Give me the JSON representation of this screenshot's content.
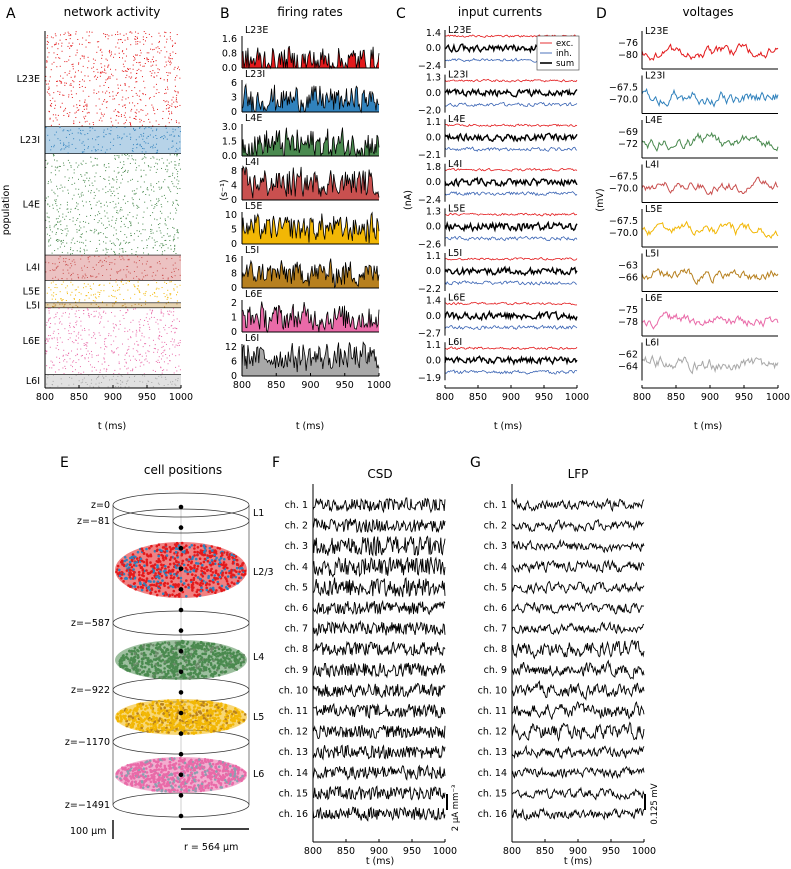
{
  "colors": {
    "L23E": "#e31a1c",
    "L23I": "#3182bd",
    "L4E": "#4a8a4f",
    "L4I": "#c9504f",
    "L5E": "#f2b705",
    "L5I": "#b7801f",
    "L6E": "#e96aa8",
    "L6I": "#a8a8a8",
    "exc": "#e31a1c",
    "inh": "#3a64b4",
    "sum": "#000000"
  },
  "panels": {
    "A": {
      "label": "A",
      "title": "network activity",
      "ylabel": "population",
      "xlabel": "t (ms)"
    },
    "B": {
      "label": "B",
      "title": "firing rates",
      "ylabel": "(s⁻¹)",
      "xlabel": "t (ms)"
    },
    "C": {
      "label": "C",
      "title": "input currents",
      "ylabel": "(nA)",
      "xlabel": "t (ms)"
    },
    "D": {
      "label": "D",
      "title": "voltages",
      "ylabel": "(mV)",
      "xlabel": "t (ms)"
    },
    "E": {
      "label": "E",
      "title": "cell positions",
      "scale_z": "100 μm",
      "scale_r": "r = 564 μm"
    },
    "F": {
      "label": "F",
      "title": "CSD",
      "xlabel": "t (ms)",
      "scale": "2 μA mm⁻³"
    },
    "G": {
      "label": "G",
      "title": "LFP",
      "xlabel": "t (ms)",
      "scale": "0.125 mV"
    }
  },
  "chart_data": [
    {
      "id": "A",
      "type": "scatter",
      "title": "network activity",
      "xlabel": "t (ms)",
      "ylabel": "population",
      "xlim": [
        800,
        1000
      ],
      "xticks": [
        "800",
        "850",
        "900",
        "950",
        "1000"
      ],
      "populations": [
        "L23E",
        "L23I",
        "L4E",
        "L4I",
        "L5E",
        "L5I",
        "L6E",
        "L6I"
      ],
      "relative_sizes": [
        20683,
        5834,
        21915,
        5479,
        4850,
        1065,
        14395,
        2948
      ]
    },
    {
      "id": "B",
      "type": "area",
      "title": "firing rates",
      "ylabel": "(s⁻¹)",
      "xlabel": "t (ms)",
      "xlim": [
        800,
        1000
      ],
      "xticks": [
        "800",
        "850",
        "900",
        "950",
        "1000"
      ],
      "rows": [
        {
          "pop": "L23E",
          "ticks": [
            "1.6",
            "0.8",
            "0.0"
          ],
          "ymax": 1.6,
          "mean": 0.35
        },
        {
          "pop": "L23I",
          "ticks": [
            "6",
            "3",
            "0"
          ],
          "ymax": 6,
          "mean": 2.3
        },
        {
          "pop": "L4E",
          "ticks": [
            "3.0",
            "1.5",
            "0.0"
          ],
          "ymax": 3.0,
          "mean": 1.1
        },
        {
          "pop": "L4I",
          "ticks": [
            "8",
            "4",
            "0"
          ],
          "ymax": 8,
          "mean": 4.2
        },
        {
          "pop": "L5E",
          "ticks": [
            "10",
            "5",
            "0"
          ],
          "ymax": 10,
          "mean": 5
        },
        {
          "pop": "L5I",
          "ticks": [
            "16",
            "8",
            "0"
          ],
          "ymax": 16,
          "mean": 7.5
        },
        {
          "pop": "L6E",
          "ticks": [
            "2",
            "1",
            "0"
          ],
          "ymax": 2,
          "mean": 0.9
        },
        {
          "pop": "L6I",
          "ticks": [
            "12",
            "6",
            "0"
          ],
          "ymax": 12,
          "mean": 7
        }
      ]
    },
    {
      "id": "C",
      "type": "line",
      "title": "input currents",
      "ylabel": "(nA)",
      "xlabel": "t (ms)",
      "xlim": [
        800,
        1000
      ],
      "xticks": [
        "800",
        "850",
        "900",
        "950",
        "1000"
      ],
      "legend": [
        "exc.",
        "inh.",
        "sum"
      ],
      "rows": [
        {
          "pop": "L23E",
          "ticks": [
            "1.4",
            "0.0",
            "−2.4"
          ]
        },
        {
          "pop": "L23I",
          "ticks": [
            "1.3",
            "0.0",
            "−2.0"
          ]
        },
        {
          "pop": "L4E",
          "ticks": [
            "1.1",
            "0.0",
            "−2.1"
          ]
        },
        {
          "pop": "L4I",
          "ticks": [
            "1.8",
            "0.0",
            "−2.4"
          ]
        },
        {
          "pop": "L5E",
          "ticks": [
            "1.3",
            "0.0",
            "−2.6"
          ]
        },
        {
          "pop": "L5I",
          "ticks": [
            "1.1",
            "0.0",
            "−2.2"
          ]
        },
        {
          "pop": "L6E",
          "ticks": [
            "1.4",
            "0.0",
            "−2.7"
          ]
        },
        {
          "pop": "L6I",
          "ticks": [
            "1.1",
            "0.0",
            "−1.9"
          ]
        }
      ]
    },
    {
      "id": "D",
      "type": "line",
      "title": "voltages",
      "ylabel": "(mV)",
      "xlabel": "t (ms)",
      "xlim": [
        800,
        1000
      ],
      "xticks": [
        "800",
        "850",
        "900",
        "950",
        "1000"
      ],
      "rows": [
        {
          "pop": "L23E",
          "ticks": [
            "−76",
            "−80"
          ]
        },
        {
          "pop": "L23I",
          "ticks": [
            "−67.5",
            "−70.0"
          ]
        },
        {
          "pop": "L4E",
          "ticks": [
            "−69",
            "−72"
          ]
        },
        {
          "pop": "L4I",
          "ticks": [
            "−67.5",
            "−70.0"
          ]
        },
        {
          "pop": "L5E",
          "ticks": [
            "−67.5",
            "−70.0"
          ]
        },
        {
          "pop": "L5I",
          "ticks": [
            "−63",
            "−66"
          ]
        },
        {
          "pop": "L6E",
          "ticks": [
            "−75",
            "−78"
          ]
        },
        {
          "pop": "L6I",
          "ticks": [
            "−62",
            "−64"
          ]
        }
      ]
    },
    {
      "id": "E",
      "type": "other",
      "title": "cell positions",
      "depth_labels": [
        "z=0",
        "z=−81",
        "z=−587",
        "z=−922",
        "z=−1170",
        "z=−1491"
      ],
      "depths_um": [
        0,
        -81,
        -587,
        -922,
        -1170,
        -1491
      ],
      "layers": [
        "L1",
        "L2/3",
        "L4",
        "L5",
        "L6"
      ],
      "scale_z": "100 μm",
      "scale_r": "r = 564 μm"
    },
    {
      "id": "F",
      "type": "line",
      "title": "CSD",
      "xlabel": "t (ms)",
      "xlim": [
        800,
        1000
      ],
      "xticks": [
        "800",
        "850",
        "900",
        "950",
        "1000"
      ],
      "channels": [
        "ch. 1",
        "ch. 2",
        "ch. 3",
        "ch. 4",
        "ch. 5",
        "ch. 6",
        "ch. 7",
        "ch. 8",
        "ch. 9",
        "ch. 10",
        "ch. 11",
        "ch. 12",
        "ch. 13",
        "ch. 14",
        "ch. 15",
        "ch. 16"
      ],
      "scale_bar": "2 μA mm⁻³"
    },
    {
      "id": "G",
      "type": "line",
      "title": "LFP",
      "xlabel": "t (ms)",
      "xlim": [
        800,
        1000
      ],
      "xticks": [
        "800",
        "850",
        "900",
        "950",
        "1000"
      ],
      "channels": [
        "ch. 1",
        "ch. 2",
        "ch. 3",
        "ch. 4",
        "ch. 5",
        "ch. 6",
        "ch. 7",
        "ch. 8",
        "ch. 9",
        "ch. 10",
        "ch. 11",
        "ch. 12",
        "ch. 13",
        "ch. 14",
        "ch. 15",
        "ch. 16"
      ],
      "scale_bar": "0.125 mV"
    }
  ]
}
